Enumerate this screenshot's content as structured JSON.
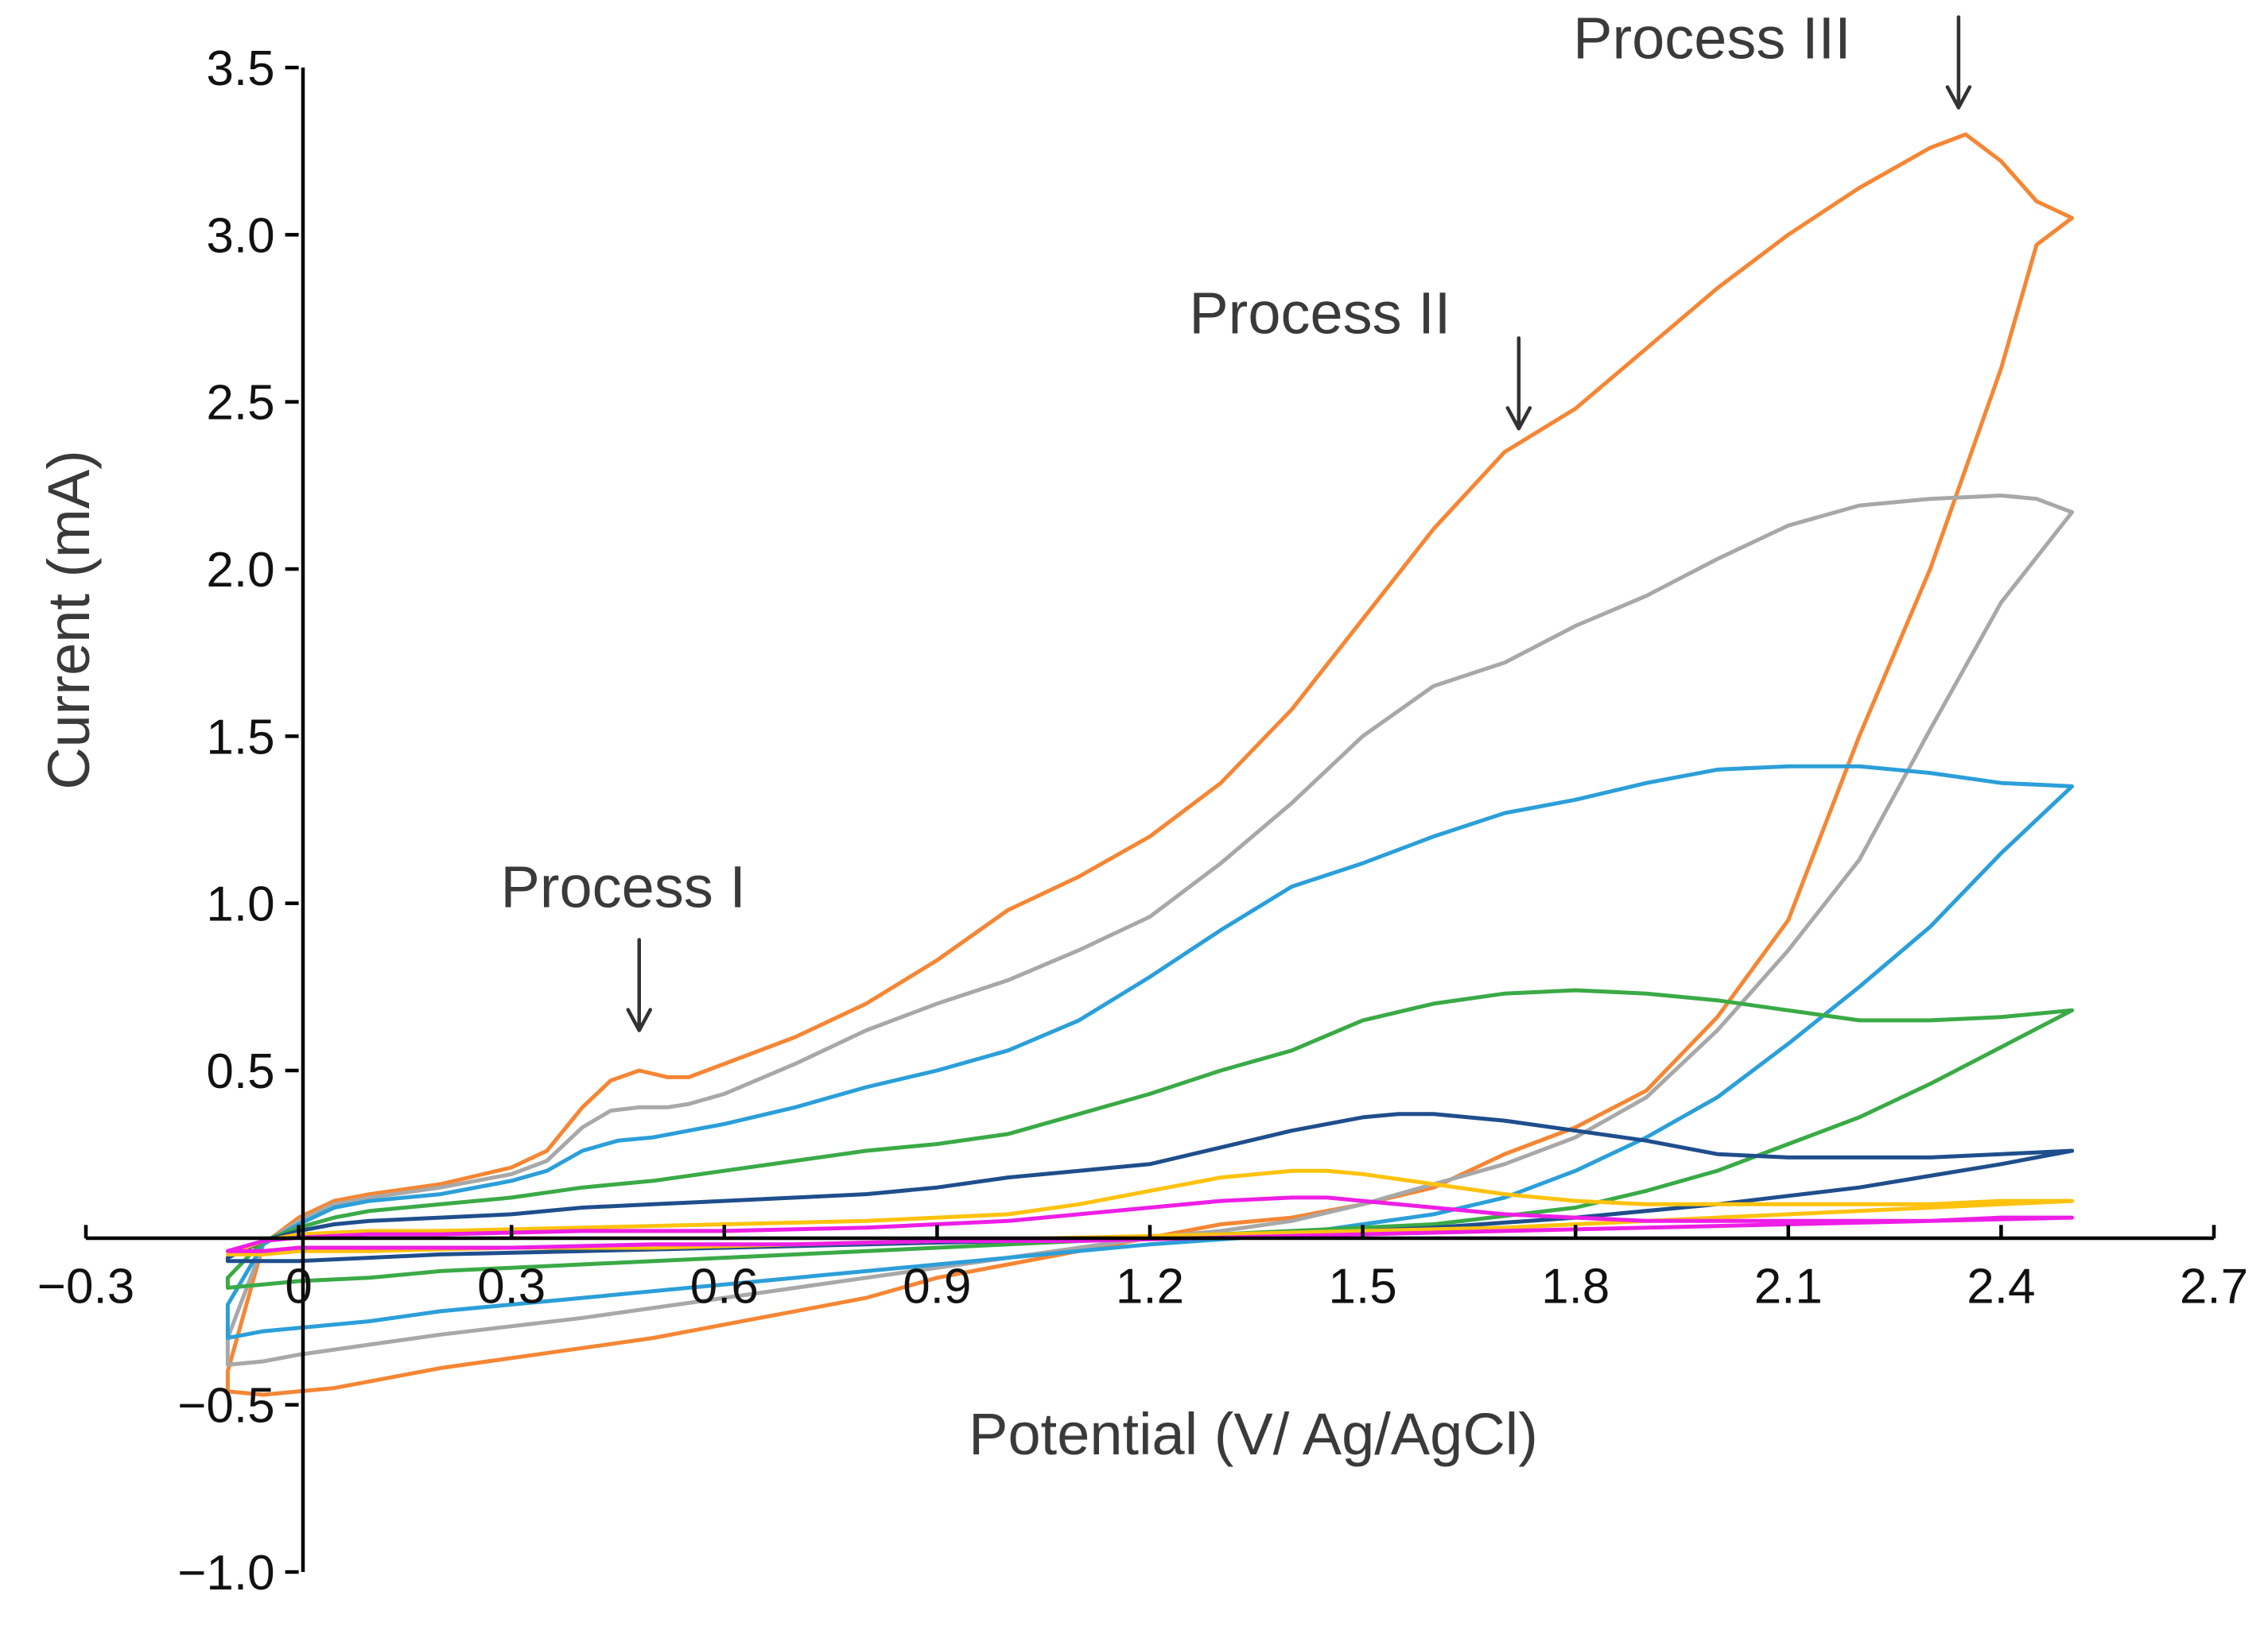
{
  "chart_data": {
    "type": "line",
    "title": "",
    "xlabel": "Potential (V/ Ag/AgCl)",
    "ylabel": "Current (mA)",
    "xlim": [
      -0.3,
      2.7
    ],
    "ylim": [
      -1.0,
      3.5
    ],
    "x_ticks": [
      -0.3,
      0,
      0.3,
      0.6,
      0.9,
      1.2,
      1.5,
      1.8,
      2.1,
      2.4,
      2.7
    ],
    "x_tick_labels": [
      "−0.3",
      "0",
      "0.3",
      "0.6",
      "0.9",
      "1.2",
      "1.5",
      "1.8",
      "2.1",
      "2.4",
      "2.7"
    ],
    "y_ticks": [
      -1.0,
      -0.5,
      0.5,
      1.0,
      1.5,
      2.0,
      2.5,
      3.0,
      3.5
    ],
    "y_tick_labels": [
      "−1.0",
      "−0.5",
      "0.5",
      "1.0",
      "1.5",
      "2.0",
      "2.5",
      "3.0",
      "3.5"
    ],
    "grid": false,
    "legend": "none",
    "series": [
      {
        "color": "#f58634",
        "x": [
          -0.1,
          -0.05,
          0,
          0.05,
          0.1,
          0.2,
          0.3,
          0.35,
          0.4,
          0.44,
          0.48,
          0.52,
          0.55,
          0.6,
          0.7,
          0.8,
          0.9,
          1.0,
          1.1,
          1.2,
          1.3,
          1.4,
          1.5,
          1.6,
          1.7,
          1.8,
          1.9,
          2.0,
          2.1,
          2.2,
          2.3,
          2.35,
          2.4,
          2.45,
          2.5,
          2.5,
          2.45,
          2.4,
          2.3,
          2.2,
          2.1,
          2.0,
          1.9,
          1.8,
          1.7,
          1.6,
          1.5,
          1.4,
          1.3,
          1.2,
          1.1,
          1.0,
          0.9,
          0.8,
          0.7,
          0.6,
          0.5,
          0.4,
          0.3,
          0.2,
          0.1,
          0.05,
          0,
          -0.05,
          -0.1,
          -0.1,
          -0.1
        ],
        "y": [
          -0.4,
          -0.02,
          0.06,
          0.11,
          0.13,
          0.16,
          0.21,
          0.26,
          0.39,
          0.47,
          0.5,
          0.48,
          0.48,
          0.52,
          0.6,
          0.7,
          0.83,
          0.98,
          1.08,
          1.2,
          1.36,
          1.58,
          1.85,
          2.12,
          2.35,
          2.48,
          2.66,
          2.84,
          3.0,
          3.14,
          3.26,
          3.3,
          3.22,
          3.1,
          3.05,
          3.05,
          2.97,
          2.6,
          2.0,
          1.5,
          0.95,
          0.66,
          0.44,
          0.33,
          0.25,
          0.15,
          0.1,
          0.06,
          0.04,
          0.0,
          -0.04,
          -0.08,
          -0.12,
          -0.18,
          -0.22,
          -0.26,
          -0.3,
          -0.33,
          -0.36,
          -0.39,
          -0.43,
          -0.45,
          -0.46,
          -0.47,
          -0.46,
          -0.46,
          -0.4
        ]
      },
      {
        "color": "#a8a8a8",
        "x": [
          -0.1,
          -0.05,
          0,
          0.05,
          0.1,
          0.2,
          0.3,
          0.35,
          0.4,
          0.44,
          0.48,
          0.52,
          0.55,
          0.6,
          0.7,
          0.8,
          0.9,
          1.0,
          1.1,
          1.2,
          1.3,
          1.4,
          1.5,
          1.6,
          1.7,
          1.8,
          1.9,
          2.0,
          2.1,
          2.2,
          2.3,
          2.4,
          2.45,
          2.5,
          2.5,
          2.4,
          2.3,
          2.2,
          2.1,
          2.0,
          1.9,
          1.8,
          1.7,
          1.6,
          1.5,
          1.4,
          1.3,
          1.2,
          1.0,
          0.8,
          0.6,
          0.4,
          0.2,
          0.1,
          0,
          -0.05,
          -0.1,
          -0.1
        ],
        "y": [
          -0.3,
          -0.02,
          0.05,
          0.1,
          0.12,
          0.15,
          0.19,
          0.23,
          0.33,
          0.38,
          0.39,
          0.39,
          0.4,
          0.43,
          0.52,
          0.62,
          0.7,
          0.77,
          0.86,
          0.96,
          1.12,
          1.3,
          1.5,
          1.65,
          1.72,
          1.83,
          1.92,
          2.03,
          2.13,
          2.19,
          2.21,
          2.22,
          2.21,
          2.17,
          2.17,
          1.9,
          1.52,
          1.13,
          0.86,
          0.62,
          0.42,
          0.3,
          0.22,
          0.16,
          0.1,
          0.05,
          0.02,
          0.0,
          -0.06,
          -0.12,
          -0.18,
          -0.24,
          -0.29,
          -0.32,
          -0.35,
          -0.37,
          -0.38,
          -0.3
        ]
      },
      {
        "color": "#2b9fd9",
        "x": [
          -0.1,
          -0.05,
          0,
          0.05,
          0.1,
          0.2,
          0.3,
          0.35,
          0.4,
          0.45,
          0.5,
          0.6,
          0.7,
          0.8,
          0.9,
          1.0,
          1.1,
          1.2,
          1.3,
          1.4,
          1.5,
          1.6,
          1.7,
          1.8,
          1.9,
          2.0,
          2.1,
          2.2,
          2.3,
          2.4,
          2.5,
          2.5,
          2.4,
          2.3,
          2.2,
          2.1,
          2.0,
          1.9,
          1.8,
          1.7,
          1.6,
          1.5,
          1.4,
          1.2,
          1.0,
          0.8,
          0.6,
          0.4,
          0.2,
          0.1,
          0,
          -0.05,
          -0.1,
          -0.1
        ],
        "y": [
          -0.2,
          -0.02,
          0.04,
          0.09,
          0.11,
          0.13,
          0.17,
          0.2,
          0.26,
          0.29,
          0.3,
          0.34,
          0.39,
          0.45,
          0.5,
          0.56,
          0.65,
          0.78,
          0.92,
          1.05,
          1.12,
          1.2,
          1.27,
          1.31,
          1.36,
          1.4,
          1.41,
          1.41,
          1.39,
          1.36,
          1.35,
          1.35,
          1.15,
          0.93,
          0.75,
          0.58,
          0.42,
          0.3,
          0.2,
          0.12,
          0.07,
          0.04,
          0.01,
          -0.02,
          -0.06,
          -0.1,
          -0.14,
          -0.18,
          -0.22,
          -0.25,
          -0.27,
          -0.28,
          -0.3,
          -0.2
        ]
      },
      {
        "color": "#3aaa46",
        "x": [
          -0.1,
          -0.05,
          0,
          0.05,
          0.1,
          0.2,
          0.3,
          0.4,
          0.5,
          0.6,
          0.7,
          0.8,
          0.9,
          1.0,
          1.1,
          1.2,
          1.3,
          1.4,
          1.5,
          1.6,
          1.7,
          1.8,
          1.9,
          2.0,
          2.1,
          2.2,
          2.3,
          2.4,
          2.5,
          2.5,
          2.4,
          2.3,
          2.2,
          2.1,
          2.0,
          1.9,
          1.8,
          1.6,
          1.4,
          1.2,
          1.0,
          0.8,
          0.6,
          0.4,
          0.2,
          0.1,
          0,
          -0.05,
          -0.1,
          -0.1
        ],
        "y": [
          -0.12,
          -0.01,
          0.03,
          0.06,
          0.08,
          0.1,
          0.12,
          0.15,
          0.17,
          0.2,
          0.23,
          0.26,
          0.28,
          0.31,
          0.37,
          0.43,
          0.5,
          0.56,
          0.65,
          0.7,
          0.73,
          0.74,
          0.73,
          0.71,
          0.68,
          0.65,
          0.65,
          0.66,
          0.68,
          0.68,
          0.57,
          0.46,
          0.36,
          0.28,
          0.2,
          0.14,
          0.09,
          0.04,
          0.02,
          0.0,
          -0.02,
          -0.04,
          -0.06,
          -0.08,
          -0.1,
          -0.12,
          -0.13,
          -0.14,
          -0.15,
          -0.12
        ]
      },
      {
        "color": "#1f4e8c",
        "x": [
          -0.1,
          -0.05,
          0,
          0.05,
          0.1,
          0.2,
          0.3,
          0.4,
          0.5,
          0.6,
          0.7,
          0.8,
          0.9,
          1.0,
          1.1,
          1.2,
          1.3,
          1.4,
          1.5,
          1.55,
          1.6,
          1.7,
          1.8,
          1.9,
          2.0,
          2.1,
          2.2,
          2.3,
          2.4,
          2.5,
          2.5,
          2.4,
          2.2,
          2.0,
          1.8,
          1.6,
          1.4,
          1.2,
          1.0,
          0.8,
          0.6,
          0.4,
          0.2,
          0.1,
          0,
          -0.05,
          -0.1,
          -0.1
        ],
        "y": [
          -0.06,
          -0.01,
          0.02,
          0.04,
          0.05,
          0.06,
          0.07,
          0.09,
          0.1,
          0.11,
          0.12,
          0.13,
          0.15,
          0.18,
          0.2,
          0.22,
          0.27,
          0.32,
          0.36,
          0.37,
          0.37,
          0.35,
          0.32,
          0.29,
          0.25,
          0.24,
          0.24,
          0.24,
          0.25,
          0.26,
          0.26,
          0.22,
          0.15,
          0.1,
          0.06,
          0.03,
          0.01,
          0.0,
          -0.01,
          -0.02,
          -0.03,
          -0.04,
          -0.05,
          -0.06,
          -0.07,
          -0.07,
          -0.07,
          -0.06
        ]
      },
      {
        "color": "#ffc20e",
        "x": [
          -0.1,
          -0.05,
          0,
          0.1,
          0.2,
          0.4,
          0.6,
          0.8,
          1.0,
          1.1,
          1.2,
          1.3,
          1.4,
          1.45,
          1.5,
          1.6,
          1.7,
          1.8,
          1.9,
          2.0,
          2.1,
          2.2,
          2.3,
          2.4,
          2.5,
          2.5,
          2.3,
          2.1,
          1.9,
          1.7,
          1.5,
          1.3,
          1.1,
          0.9,
          0.7,
          0.5,
          0.3,
          0.1,
          0,
          -0.05,
          -0.1,
          -0.1
        ],
        "y": [
          -0.05,
          -0.01,
          0.01,
          0.02,
          0.02,
          0.03,
          0.04,
          0.05,
          0.07,
          0.1,
          0.14,
          0.18,
          0.2,
          0.2,
          0.19,
          0.16,
          0.13,
          0.11,
          0.1,
          0.1,
          0.1,
          0.1,
          0.1,
          0.11,
          0.11,
          0.11,
          0.09,
          0.07,
          0.05,
          0.03,
          0.02,
          0.01,
          0.0,
          -0.01,
          -0.02,
          -0.03,
          -0.03,
          -0.04,
          -0.04,
          -0.05,
          -0.05,
          -0.05
        ]
      },
      {
        "color": "#ee1ee6",
        "x": [
          -0.1,
          -0.05,
          0,
          0.1,
          0.2,
          0.4,
          0.6,
          0.8,
          1.0,
          1.1,
          1.2,
          1.3,
          1.4,
          1.45,
          1.5,
          1.6,
          1.7,
          1.8,
          1.9,
          2.0,
          2.1,
          2.2,
          2.3,
          2.4,
          2.5,
          2.5,
          2.3,
          2.1,
          1.9,
          1.7,
          1.5,
          1.3,
          1.1,
          0.9,
          0.7,
          0.5,
          0.3,
          0.1,
          0,
          -0.05,
          -0.1,
          -0.1
        ],
        "y": [
          -0.04,
          -0.01,
          0.0,
          0.01,
          0.01,
          0.02,
          0.02,
          0.03,
          0.05,
          0.07,
          0.09,
          0.11,
          0.12,
          0.12,
          0.11,
          0.09,
          0.07,
          0.06,
          0.05,
          0.05,
          0.05,
          0.05,
          0.05,
          0.06,
          0.06,
          0.06,
          0.05,
          0.04,
          0.03,
          0.02,
          0.01,
          0.0,
          -0.01,
          -0.01,
          -0.02,
          -0.02,
          -0.03,
          -0.03,
          -0.03,
          -0.04,
          -0.04,
          -0.04
        ]
      }
    ],
    "annotations": [
      {
        "text": "Process I",
        "arrow_x": 0.48,
        "arrow_y": 0.62
      },
      {
        "text": "Process II",
        "arrow_x": 1.72,
        "arrow_y": 2.42
      },
      {
        "text": "Process III",
        "arrow_x": 2.34,
        "arrow_y": 3.38
      }
    ]
  }
}
